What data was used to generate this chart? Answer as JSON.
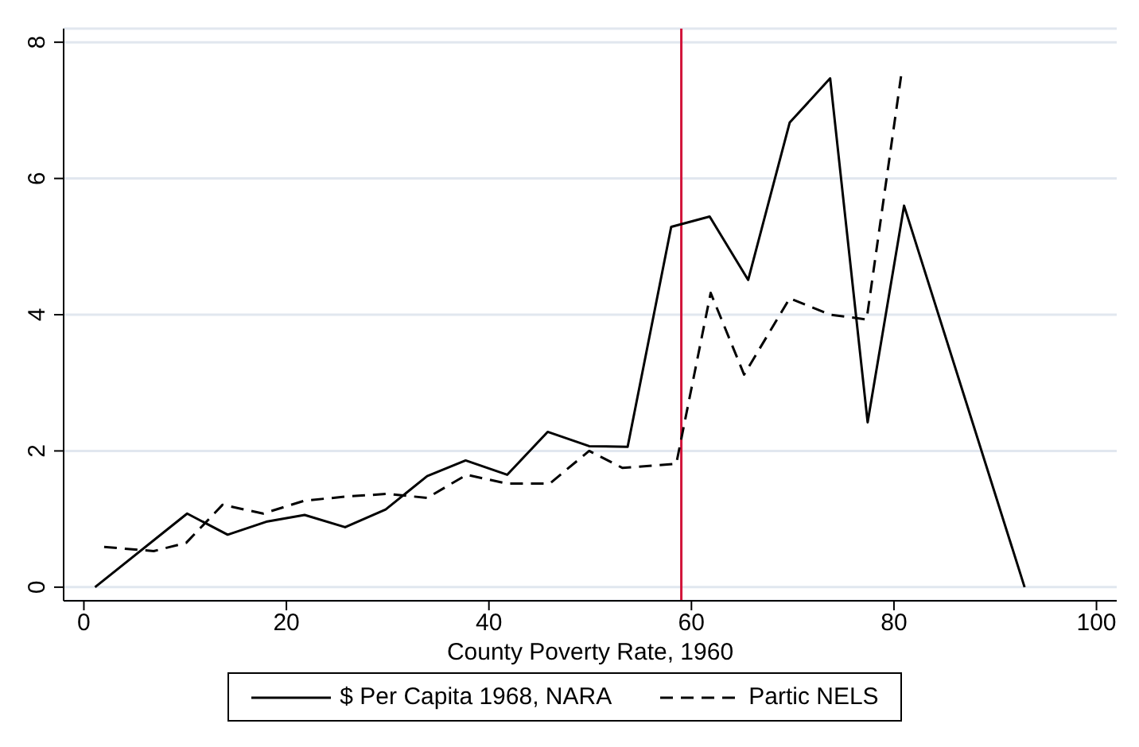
{
  "chart_data": {
    "type": "line",
    "xlabel": "County Poverty Rate, 1960",
    "xlim": [
      -2,
      102
    ],
    "xticks": [
      0,
      20,
      40,
      60,
      80,
      100
    ],
    "ylim": [
      -0.2,
      8.2
    ],
    "yticks": [
      0,
      2,
      4,
      6,
      8
    ],
    "grid": "y",
    "legend": "bottom",
    "marker": "none",
    "series": [
      {
        "name": "$ Per Capita 1968, NARA",
        "color": "#000000",
        "line_style": "solid",
        "x": [
          1.1,
          10.2,
          14.2,
          18.0,
          21.8,
          25.8,
          29.8,
          33.9,
          37.7,
          41.8,
          45.8,
          49.9,
          53.7,
          58.0,
          61.8,
          65.6,
          69.7,
          73.7,
          77.4,
          81.0,
          92.9
        ],
        "values": [
          0,
          1.08,
          0.77,
          0.96,
          1.06,
          0.88,
          1.14,
          1.63,
          1.86,
          1.65,
          2.28,
          2.07,
          2.06,
          5.29,
          5.44,
          4.51,
          6.82,
          7.47,
          2.42,
          5.6,
          0
        ]
      },
      {
        "name": "Partic NELS",
        "color": "#000000",
        "line_style": "dashed",
        "x": [
          2.0,
          6.9,
          10.1,
          13.7,
          17.7,
          21.8,
          25.9,
          30.0,
          33.9,
          37.8,
          41.8,
          46.0,
          49.9,
          53.2,
          58.5,
          61.9,
          65.2,
          69.7,
          73.7,
          77.3,
          80.7
        ],
        "values": [
          0.59,
          0.53,
          0.65,
          1.21,
          1.08,
          1.27,
          1.33,
          1.37,
          1.31,
          1.65,
          1.52,
          1.52,
          2.0,
          1.75,
          1.81,
          4.32,
          3.12,
          4.24,
          4.0,
          3.93,
          7.5
        ]
      }
    ],
    "ref_lines": [
      {
        "axis": "x",
        "value": 59.0,
        "color": "#d2143a",
        "line_style": "solid"
      }
    ]
  }
}
